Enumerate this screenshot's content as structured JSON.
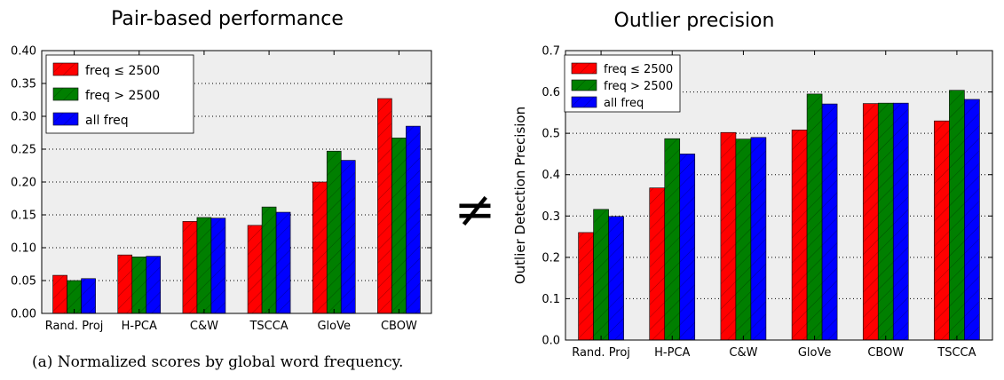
{
  "colors": {
    "red": "#ff0000",
    "green": "#007f00",
    "blue": "#0000ff",
    "plot_bg": "#eeeeee"
  },
  "caption": "(a)  Normalized scores by global word frequency.",
  "neq_symbol": "≠",
  "chart_data": [
    {
      "type": "bar",
      "title": "Pair-based performance",
      "xlabel": "",
      "ylabel": "",
      "ylim": [
        0,
        0.4
      ],
      "yticks": [
        "0.00",
        "0.05",
        "0.10",
        "0.15",
        "0.20",
        "0.25",
        "0.30",
        "0.35",
        "0.40"
      ],
      "grid": "y-dotted",
      "legend_position": "top-left",
      "categories": [
        "Rand. Proj",
        "H-PCA",
        "C&W",
        "TSCCA",
        "GloVe",
        "CBOW"
      ],
      "series": [
        {
          "name": "freq ≤ 2500",
          "color": "red",
          "values": [
            0.058,
            0.089,
            0.14,
            0.134,
            0.2,
            0.327
          ]
        },
        {
          "name": "freq > 2500",
          "color": "green",
          "values": [
            0.05,
            0.086,
            0.146,
            0.162,
            0.247,
            0.267
          ]
        },
        {
          "name": "all freq",
          "color": "blue",
          "values": [
            0.053,
            0.087,
            0.145,
            0.154,
            0.233,
            0.285
          ]
        }
      ]
    },
    {
      "type": "bar",
      "title": "Outlier precision",
      "xlabel": "",
      "ylabel": "Outlier Detection Precision",
      "ylim": [
        0,
        0.7
      ],
      "yticks": [
        "0.0",
        "0.1",
        "0.2",
        "0.3",
        "0.4",
        "0.5",
        "0.6",
        "0.7"
      ],
      "grid": "y-dotted",
      "legend_position": "top-left",
      "categories": [
        "Rand. Proj",
        "H-PCA",
        "C&W",
        "GloVe",
        "CBOW",
        "TSCCA"
      ],
      "series": [
        {
          "name": "freq ≤ 2500",
          "color": "red",
          "values": [
            0.26,
            0.368,
            0.502,
            0.508,
            0.572,
            0.53
          ]
        },
        {
          "name": "freq > 2500",
          "color": "green",
          "values": [
            0.316,
            0.487,
            0.486,
            0.595,
            0.573,
            0.604
          ]
        },
        {
          "name": "all freq",
          "color": "blue",
          "values": [
            0.299,
            0.45,
            0.49,
            0.571,
            0.573,
            0.582
          ]
        }
      ]
    }
  ]
}
